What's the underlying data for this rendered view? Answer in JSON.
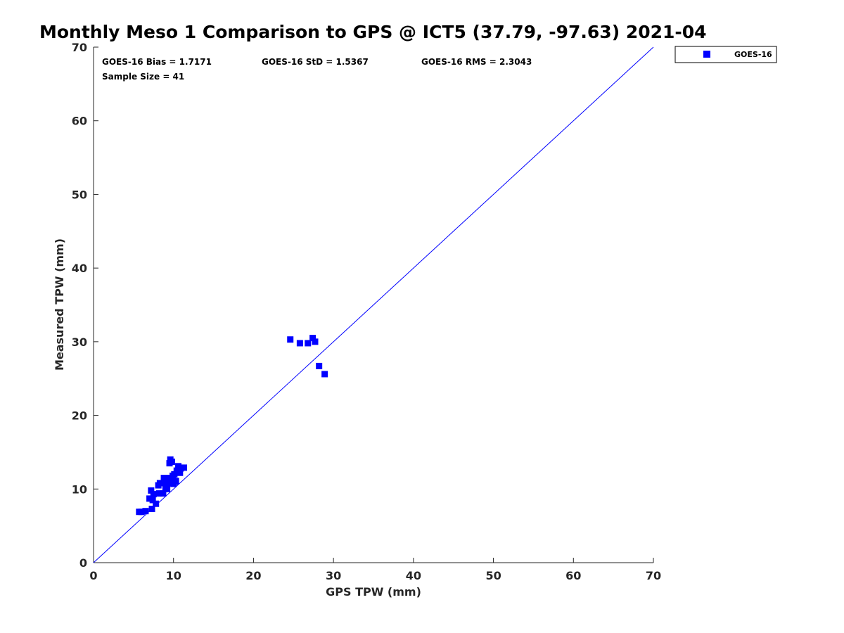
{
  "chart_data": {
    "type": "scatter",
    "title": "Monthly Meso 1 Comparison to GPS @ ICT5 (37.79, -97.63) 2021-04",
    "xlabel": "GPS TPW (mm)",
    "ylabel": "Measured TPW (mm)",
    "xlim": [
      0,
      70
    ],
    "ylim": [
      0,
      70
    ],
    "xticks": [
      0,
      10,
      20,
      30,
      40,
      50,
      60,
      70
    ],
    "yticks": [
      0,
      10,
      20,
      30,
      40,
      50,
      60,
      70
    ],
    "grid": false,
    "legend_position": "outside-top-right",
    "reference_line": {
      "x": [
        0,
        70
      ],
      "y": [
        0,
        70
      ],
      "color": "#0000ff"
    },
    "stats": {
      "bias": "GOES-16 Bias = 1.7171",
      "std": "GOES-16 StD = 1.5367",
      "rms": "GOES-16 RMS = 2.3043",
      "sample_size": "Sample Size = 41"
    },
    "series": [
      {
        "name": "GOES-16",
        "color": "#0000ff",
        "marker": "square",
        "points": [
          [
            5.7,
            6.9
          ],
          [
            6.0,
            6.9
          ],
          [
            6.5,
            7.0
          ],
          [
            7.0,
            8.7
          ],
          [
            7.2,
            9.8
          ],
          [
            7.3,
            7.3
          ],
          [
            7.4,
            8.5
          ],
          [
            7.5,
            9.3
          ],
          [
            7.8,
            8.0
          ],
          [
            8.1,
            10.5
          ],
          [
            8.2,
            9.4
          ],
          [
            8.3,
            10.8
          ],
          [
            8.7,
            9.4
          ],
          [
            8.8,
            11.5
          ],
          [
            8.9,
            11.0
          ],
          [
            9.0,
            10.2
          ],
          [
            9.2,
            10.0
          ],
          [
            9.4,
            11.3
          ],
          [
            9.5,
            13.5
          ],
          [
            9.6,
            10.8
          ],
          [
            9.6,
            14.0
          ],
          [
            9.7,
            11.1
          ],
          [
            9.8,
            13.7
          ],
          [
            9.9,
            11.8
          ],
          [
            10.0,
            10.7
          ],
          [
            10.1,
            12.0
          ],
          [
            10.3,
            11.1
          ],
          [
            10.4,
            12.5
          ],
          [
            10.6,
            13.1
          ],
          [
            10.8,
            12.2
          ],
          [
            10.9,
            12.8
          ],
          [
            11.3,
            12.9
          ],
          [
            10.2,
            11.0
          ],
          [
            24.6,
            30.3
          ],
          [
            25.8,
            29.8
          ],
          [
            26.8,
            29.8
          ],
          [
            27.4,
            30.5
          ],
          [
            27.7,
            30.0
          ],
          [
            28.2,
            26.7
          ],
          [
            28.9,
            25.6
          ],
          [
            9.3,
            11.5
          ]
        ]
      }
    ]
  }
}
